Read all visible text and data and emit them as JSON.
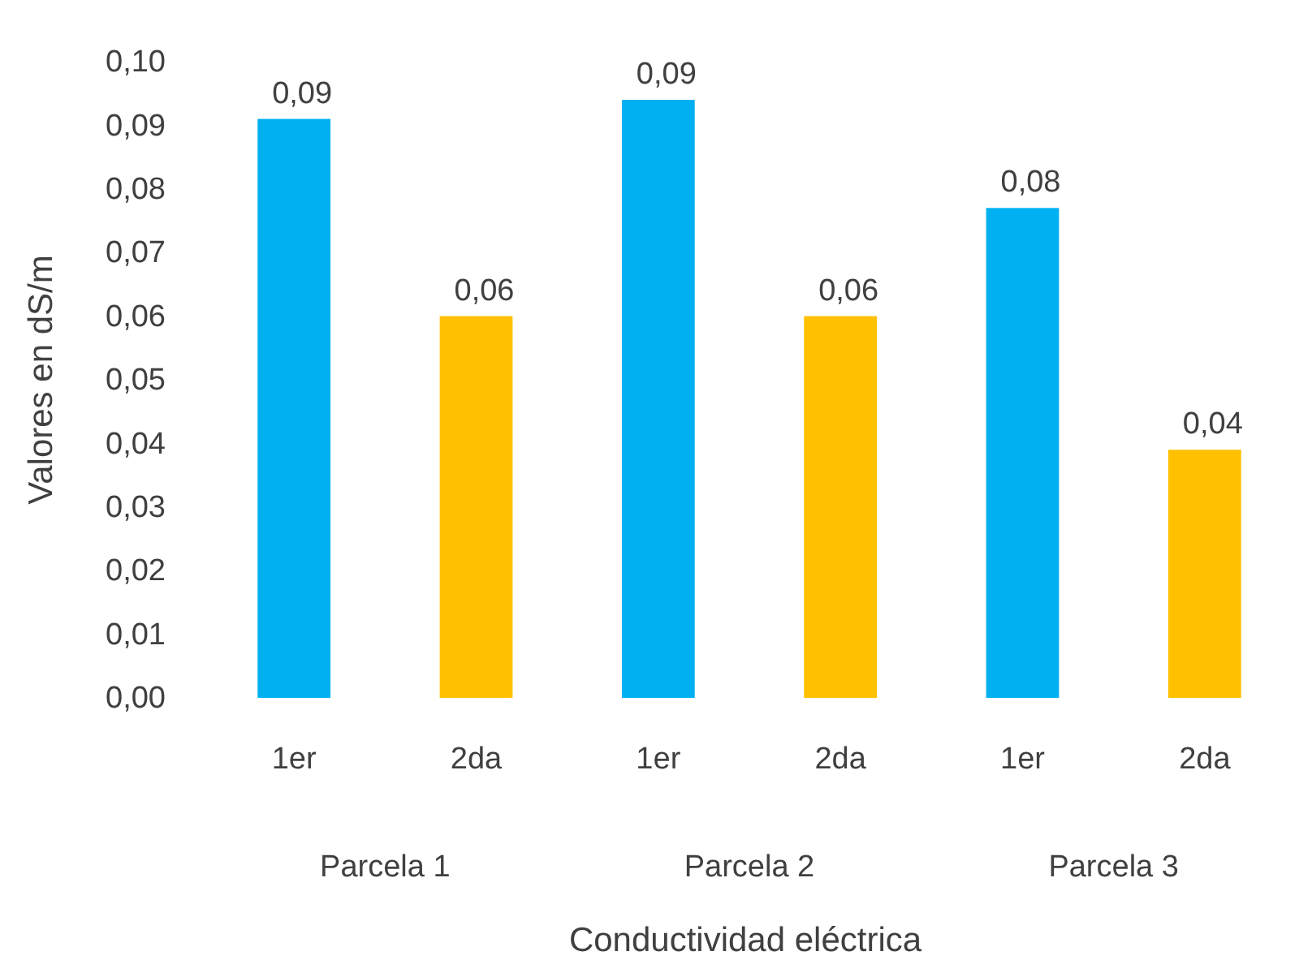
{
  "chart_data": {
    "type": "bar",
    "xlabel": "Conductividad eléctrica",
    "ylabel": "Valores en dS/m",
    "categories": [
      "1er",
      "2da",
      "1er",
      "2da",
      "1er",
      "2da"
    ],
    "values": [
      0.091,
      0.06,
      0.094,
      0.06,
      0.077,
      0.039
    ],
    "colors": [
      "#00b0f0",
      "#ffc000",
      "#00b0f0",
      "#ffc000",
      "#00b0f0",
      "#ffc000"
    ],
    "value_labels": [
      "0,09",
      "0,06",
      "0,09",
      "0,06",
      "0,08",
      "0,04"
    ],
    "annotations": [
      "Parcela 1",
      "Parcela 2",
      "Parcela 3"
    ],
    "ylim": [
      0,
      0.1
    ],
    "yticks": [
      {
        "value": 0,
        "label": "0,00"
      },
      {
        "value": 0.01,
        "label": "0,01"
      },
      {
        "value": 0.02,
        "label": "0,02"
      },
      {
        "value": 0.03,
        "label": "0,03"
      },
      {
        "value": 0.04,
        "label": "0,04"
      },
      {
        "value": 0.05,
        "label": "0,05"
      },
      {
        "value": 0.06,
        "label": "0,06"
      },
      {
        "value": 0.07,
        "label": "0,07"
      },
      {
        "value": 0.08,
        "label": "0,08"
      },
      {
        "value": 0.09,
        "label": "0,09"
      },
      {
        "value": 0.1,
        "label": "0,10"
      }
    ],
    "grid": false
  }
}
